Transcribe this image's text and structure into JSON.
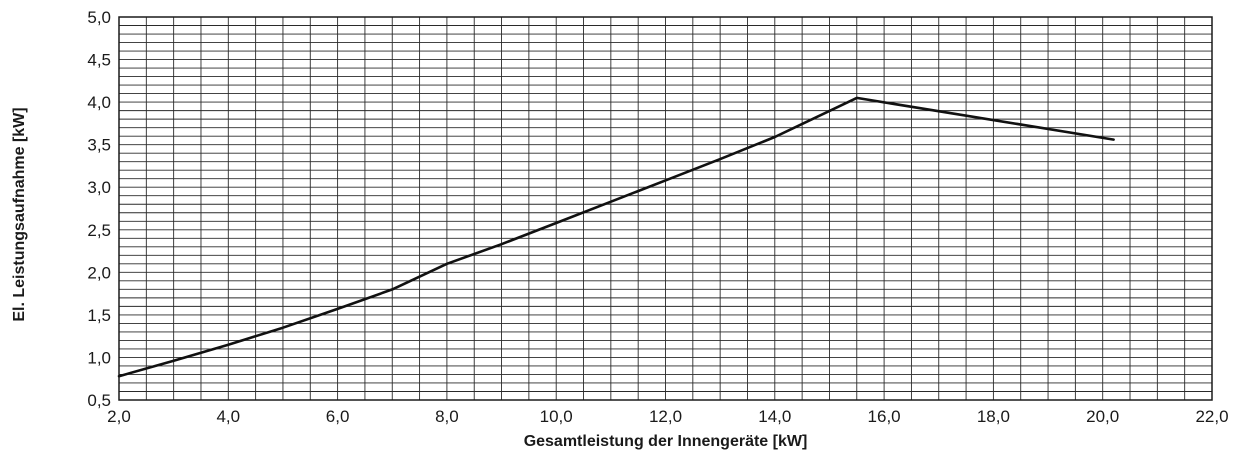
{
  "chart_data": {
    "type": "line",
    "title": "",
    "xlabel": "Gesamtleistung der Innengeräte [kW]",
    "ylabel": "El. Leistungsaufnahme [kW]",
    "xlim": [
      2.0,
      22.0
    ],
    "ylim": [
      0.5,
      5.0
    ],
    "xticks": [
      "2,0",
      "4,0",
      "6,0",
      "8,0",
      "10,0",
      "12,0",
      "14,0",
      "16,0",
      "18,0",
      "20,0",
      "22,0"
    ],
    "yticks": [
      "0,5",
      "1,0",
      "1,5",
      "2,0",
      "2,5",
      "3,0",
      "3,5",
      "4,0",
      "4,5",
      "5,0"
    ],
    "grid": true,
    "grid_minor_x_step": 0.5,
    "grid_minor_y_step": 0.1,
    "series": [
      {
        "x": [
          2.0,
          3.0,
          4.0,
          5.0,
          6.0,
          7.0,
          8.0,
          9.0,
          10.0,
          11.0,
          12.0,
          13.0,
          14.0,
          15.5,
          20.2
        ],
        "y": [
          0.78,
          0.96,
          1.15,
          1.35,
          1.57,
          1.8,
          2.1,
          2.33,
          2.58,
          2.83,
          3.08,
          3.33,
          3.59,
          4.05,
          3.56
        ]
      }
    ]
  }
}
